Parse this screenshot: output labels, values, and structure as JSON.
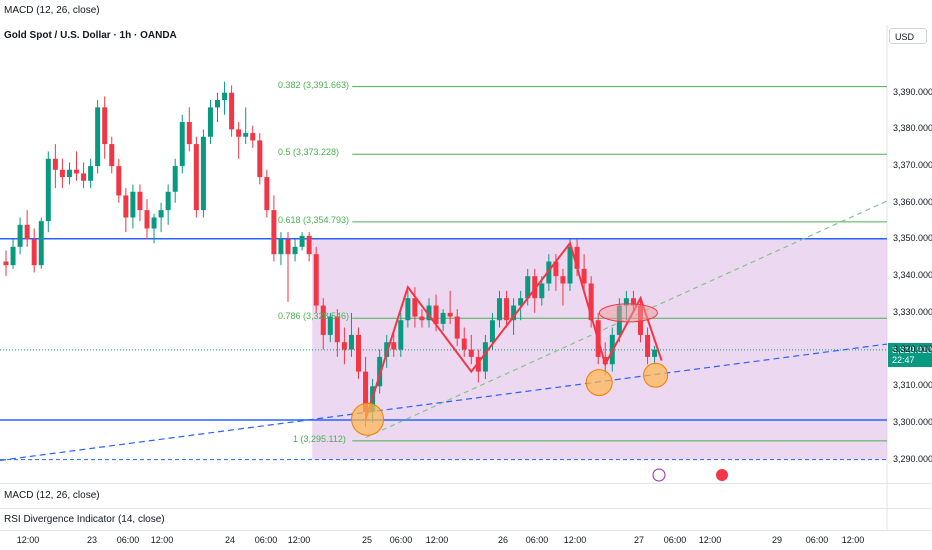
{
  "header": {
    "top_indicator": "MACD (12, 26, close)",
    "symbol": "Gold Spot / U.S. Dollar · 1h · OANDA",
    "currency": "USD"
  },
  "panes": {
    "macd_label": "MACD (12, 26, close)",
    "rsi_label": "RSI Divergence Indicator (14, close)"
  },
  "price_tag": {
    "price": "3,319.910",
    "countdown": "22:47",
    "color": "#089981"
  },
  "colors": {
    "up": "#089981",
    "down": "#f23645",
    "zone": "#e1bee7",
    "level_line": "#2962ff",
    "fib": "#4caf50",
    "zigzag": "#f23645",
    "circle_fill": "#ffb74d"
  },
  "chart_data": {
    "type": "candlestick",
    "title": "Gold Spot / U.S. Dollar · 1h · OANDA",
    "ylim": [
      3285,
      3403
    ],
    "y_ticks": [
      "3,290.000",
      "3,300.000",
      "3,310.000",
      "3,320.000",
      "3,330.000",
      "3,340.000",
      "3,350.000",
      "3,360.000",
      "3,370.000",
      "3,380.000",
      "3,390.000"
    ],
    "x_ticks": [
      "12:00",
      "23",
      "06:00",
      "12:00",
      "24",
      "06:00",
      "12:00",
      "25",
      "06:00",
      "12:00",
      "26",
      "06:00",
      "12:00",
      "27",
      "06:00",
      "12:00",
      "29",
      "06:00",
      "12:00"
    ],
    "fib_levels": [
      {
        "label": "0.382 (3,391.663)",
        "price": 3391.663
      },
      {
        "label": "0.5 (3,373.228)",
        "price": 3373.228
      },
      {
        "label": "0.618 (3,354.793)",
        "price": 3354.793
      },
      {
        "label": "0.786 (3,328.546)",
        "price": 3328.546
      },
      {
        "label": "1 (3,295.112)",
        "price": 3295.112
      }
    ],
    "horizontal_levels": [
      3350.2,
      3300.8,
      3290.0
    ],
    "last_price": 3319.91,
    "candles": [
      {
        "o": 3344,
        "h": 3347,
        "l": 3340,
        "c": 3343
      },
      {
        "o": 3343,
        "h": 3350,
        "l": 3342,
        "c": 3348
      },
      {
        "o": 3348,
        "h": 3356,
        "l": 3346,
        "c": 3354
      },
      {
        "o": 3354,
        "h": 3358,
        "l": 3348,
        "c": 3350
      },
      {
        "o": 3350,
        "h": 3353,
        "l": 3341,
        "c": 3343
      },
      {
        "o": 3343,
        "h": 3356,
        "l": 3342,
        "c": 3355
      },
      {
        "o": 3355,
        "h": 3374,
        "l": 3352,
        "c": 3372
      },
      {
        "o": 3372,
        "h": 3376,
        "l": 3364,
        "c": 3369
      },
      {
        "o": 3369,
        "h": 3372,
        "l": 3364,
        "c": 3367
      },
      {
        "o": 3367,
        "h": 3371,
        "l": 3365,
        "c": 3369
      },
      {
        "o": 3369,
        "h": 3374,
        "l": 3366,
        "c": 3368
      },
      {
        "o": 3368,
        "h": 3371,
        "l": 3364,
        "c": 3366
      },
      {
        "o": 3366,
        "h": 3372,
        "l": 3364,
        "c": 3370
      },
      {
        "o": 3370,
        "h": 3388,
        "l": 3368,
        "c": 3386
      },
      {
        "o": 3386,
        "h": 3389,
        "l": 3372,
        "c": 3376
      },
      {
        "o": 3376,
        "h": 3378,
        "l": 3368,
        "c": 3370
      },
      {
        "o": 3370,
        "h": 3372,
        "l": 3360,
        "c": 3362
      },
      {
        "o": 3362,
        "h": 3364,
        "l": 3352,
        "c": 3356
      },
      {
        "o": 3356,
        "h": 3365,
        "l": 3353,
        "c": 3363
      },
      {
        "o": 3363,
        "h": 3365,
        "l": 3355,
        "c": 3358
      },
      {
        "o": 3358,
        "h": 3361,
        "l": 3350,
        "c": 3353
      },
      {
        "o": 3353,
        "h": 3357,
        "l": 3349,
        "c": 3356
      },
      {
        "o": 3356,
        "h": 3360,
        "l": 3352,
        "c": 3358
      },
      {
        "o": 3358,
        "h": 3365,
        "l": 3354,
        "c": 3363
      },
      {
        "o": 3363,
        "h": 3372,
        "l": 3360,
        "c": 3370
      },
      {
        "o": 3370,
        "h": 3384,
        "l": 3368,
        "c": 3382
      },
      {
        "o": 3382,
        "h": 3386,
        "l": 3374,
        "c": 3376
      },
      {
        "o": 3376,
        "h": 3378,
        "l": 3356,
        "c": 3358
      },
      {
        "o": 3358,
        "h": 3380,
        "l": 3356,
        "c": 3378
      },
      {
        "o": 3378,
        "h": 3388,
        "l": 3376,
        "c": 3386
      },
      {
        "o": 3386,
        "h": 3390,
        "l": 3382,
        "c": 3388
      },
      {
        "o": 3388,
        "h": 3393,
        "l": 3384,
        "c": 3390
      },
      {
        "o": 3390,
        "h": 3392,
        "l": 3378,
        "c": 3380
      },
      {
        "o": 3380,
        "h": 3382,
        "l": 3372,
        "c": 3378
      },
      {
        "o": 3378,
        "h": 3386,
        "l": 3376,
        "c": 3379
      },
      {
        "o": 3379,
        "h": 3381,
        "l": 3375,
        "c": 3377
      },
      {
        "o": 3377,
        "h": 3379,
        "l": 3365,
        "c": 3367
      },
      {
        "o": 3367,
        "h": 3369,
        "l": 3356,
        "c": 3358
      },
      {
        "o": 3358,
        "h": 3362,
        "l": 3344,
        "c": 3346
      },
      {
        "o": 3346,
        "h": 3352,
        "l": 3343,
        "c": 3350
      },
      {
        "o": 3350,
        "h": 3352,
        "l": 3333,
        "c": 3346
      },
      {
        "o": 3346,
        "h": 3350,
        "l": 3344,
        "c": 3348
      },
      {
        "o": 3348,
        "h": 3352,
        "l": 3347,
        "c": 3351
      },
      {
        "o": 3351,
        "h": 3352,
        "l": 3344,
        "c": 3346
      },
      {
        "o": 3346,
        "h": 3348,
        "l": 3330,
        "c": 3332
      },
      {
        "o": 3332,
        "h": 3334,
        "l": 3320,
        "c": 3324
      },
      {
        "o": 3324,
        "h": 3330,
        "l": 3322,
        "c": 3329
      },
      {
        "o": 3329,
        "h": 3331,
        "l": 3318,
        "c": 3322
      },
      {
        "o": 3322,
        "h": 3326,
        "l": 3316,
        "c": 3320
      },
      {
        "o": 3320,
        "h": 3330,
        "l": 3318,
        "c": 3324
      },
      {
        "o": 3324,
        "h": 3326,
        "l": 3312,
        "c": 3314
      },
      {
        "o": 3314,
        "h": 3318,
        "l": 3299,
        "c": 3303
      },
      {
        "o": 3303,
        "h": 3312,
        "l": 3300,
        "c": 3310
      },
      {
        "o": 3310,
        "h": 3320,
        "l": 3308,
        "c": 3318
      },
      {
        "o": 3318,
        "h": 3324,
        "l": 3315,
        "c": 3322
      },
      {
        "o": 3322,
        "h": 3325,
        "l": 3318,
        "c": 3320
      },
      {
        "o": 3320,
        "h": 3330,
        "l": 3318,
        "c": 3328
      },
      {
        "o": 3328,
        "h": 3336,
        "l": 3326,
        "c": 3334
      },
      {
        "o": 3334,
        "h": 3337,
        "l": 3326,
        "c": 3329
      },
      {
        "o": 3329,
        "h": 3331,
        "l": 3326,
        "c": 3328
      },
      {
        "o": 3328,
        "h": 3334,
        "l": 3326,
        "c": 3332
      },
      {
        "o": 3332,
        "h": 3335,
        "l": 3325,
        "c": 3327
      },
      {
        "o": 3327,
        "h": 3331,
        "l": 3325,
        "c": 3330
      },
      {
        "o": 3330,
        "h": 3336,
        "l": 3327,
        "c": 3329
      },
      {
        "o": 3329,
        "h": 3331,
        "l": 3321,
        "c": 3323
      },
      {
        "o": 3323,
        "h": 3326,
        "l": 3318,
        "c": 3320
      },
      {
        "o": 3320,
        "h": 3324,
        "l": 3316,
        "c": 3318
      },
      {
        "o": 3318,
        "h": 3320,
        "l": 3311,
        "c": 3314
      },
      {
        "o": 3314,
        "h": 3324,
        "l": 3312,
        "c": 3322
      },
      {
        "o": 3322,
        "h": 3330,
        "l": 3320,
        "c": 3328
      },
      {
        "o": 3328,
        "h": 3336,
        "l": 3326,
        "c": 3334
      },
      {
        "o": 3334,
        "h": 3336,
        "l": 3326,
        "c": 3328
      },
      {
        "o": 3328,
        "h": 3334,
        "l": 3324,
        "c": 3332
      },
      {
        "o": 3332,
        "h": 3336,
        "l": 3328,
        "c": 3334
      },
      {
        "o": 3334,
        "h": 3342,
        "l": 3332,
        "c": 3340
      },
      {
        "o": 3340,
        "h": 3342,
        "l": 3330,
        "c": 3334
      },
      {
        "o": 3334,
        "h": 3340,
        "l": 3332,
        "c": 3338
      },
      {
        "o": 3338,
        "h": 3346,
        "l": 3336,
        "c": 3344
      },
      {
        "o": 3344,
        "h": 3346,
        "l": 3336,
        "c": 3340
      },
      {
        "o": 3340,
        "h": 3342,
        "l": 3332,
        "c": 3338
      },
      {
        "o": 3338,
        "h": 3350,
        "l": 3336,
        "c": 3348
      },
      {
        "o": 3348,
        "h": 3350,
        "l": 3340,
        "c": 3342
      },
      {
        "o": 3342,
        "h": 3346,
        "l": 3336,
        "c": 3338
      },
      {
        "o": 3338,
        "h": 3340,
        "l": 3326,
        "c": 3328
      },
      {
        "o": 3328,
        "h": 3330,
        "l": 3316,
        "c": 3318
      },
      {
        "o": 3318,
        "h": 3322,
        "l": 3313,
        "c": 3316
      },
      {
        "o": 3316,
        "h": 3326,
        "l": 3314,
        "c": 3324
      },
      {
        "o": 3324,
        "h": 3334,
        "l": 3322,
        "c": 3332
      },
      {
        "o": 3332,
        "h": 3336,
        "l": 3328,
        "c": 3334
      },
      {
        "o": 3334,
        "h": 3336,
        "l": 3330,
        "c": 3332
      },
      {
        "o": 3332,
        "h": 3334,
        "l": 3322,
        "c": 3324
      },
      {
        "o": 3324,
        "h": 3326,
        "l": 3316,
        "c": 3318
      },
      {
        "o": 3318,
        "h": 3321,
        "l": 3316,
        "c": 3320
      }
    ],
    "zigzag": [
      [
        51,
        3301
      ],
      [
        57,
        3337
      ],
      [
        66,
        3314
      ],
      [
        80,
        3349
      ],
      [
        85,
        3316
      ],
      [
        90,
        3334
      ],
      [
        93,
        3317
      ]
    ],
    "zone": {
      "from_index": 44,
      "price_top": 3350.2,
      "price_bottom": 3290.0
    }
  }
}
